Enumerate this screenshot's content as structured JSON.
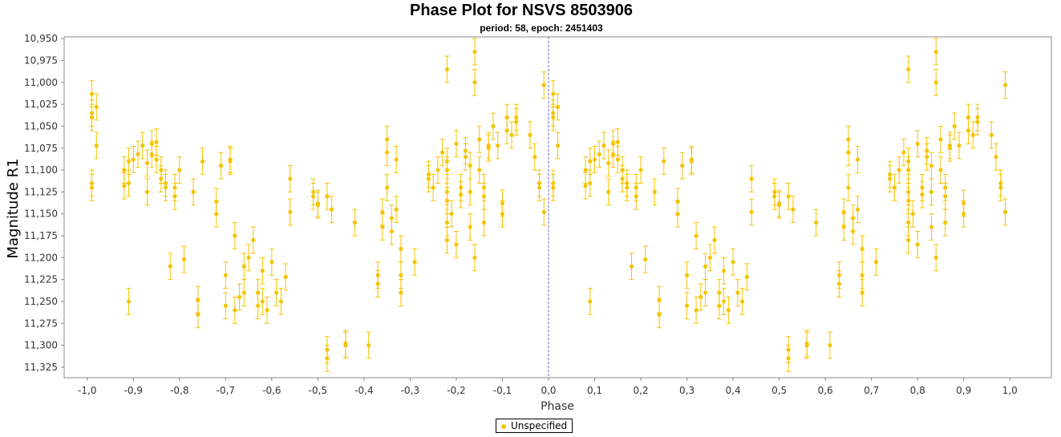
{
  "title": "Phase Plot for  NSVS 8503906",
  "subtitle": "period: 58, epoch:  2451403",
  "chart_data": {
    "type": "scatter",
    "xlabel": "Phase",
    "ylabel": "Magnitude R1",
    "xlim": [
      -1.05,
      1.09
    ],
    "ylim": [
      11.337,
      10.948
    ],
    "y_inverted": true,
    "xticks": [
      "-1,0",
      "-0,9",
      "-0,8",
      "-0,7",
      "-0,6",
      "-0,5",
      "-0,4",
      "-0,3",
      "-0,2",
      "-0,1",
      "0,0",
      "0,1",
      "0,2",
      "0,3",
      "0,4",
      "0,5",
      "0,6",
      "0,7",
      "0,8",
      "0,9",
      "1,0"
    ],
    "yticks": [
      "10,950",
      "10,975",
      "11,000",
      "11,025",
      "11,050",
      "11,075",
      "11,100",
      "11,125",
      "11,150",
      "11,175",
      "11,200",
      "11,225",
      "11,250",
      "11,275",
      "11,300",
      "11,325"
    ],
    "reference_line_x": 0.0,
    "grid": false,
    "legend_position": "bottom-center",
    "marker_color": "#f5c400",
    "series": [
      {
        "name": "Unspecified",
        "error": 0.015,
        "points": [
          [
            0.01,
            11.115
          ],
          [
            0.01,
            11.12
          ],
          [
            0.01,
            11.035
          ],
          [
            0.01,
            11.04
          ],
          [
            0.01,
            11.013
          ],
          [
            0.02,
            11.028
          ],
          [
            0.02,
            11.072
          ],
          [
            0.08,
            11.1
          ],
          [
            0.08,
            11.118
          ],
          [
            0.09,
            11.09
          ],
          [
            0.09,
            11.115
          ],
          [
            0.09,
            11.25
          ],
          [
            0.1,
            11.088
          ],
          [
            0.11,
            11.082
          ],
          [
            0.12,
            11.072
          ],
          [
            0.13,
            11.092
          ],
          [
            0.13,
            11.125
          ],
          [
            0.14,
            11.07
          ],
          [
            0.14,
            11.082
          ],
          [
            0.15,
            11.068
          ],
          [
            0.15,
            11.088
          ],
          [
            0.16,
            11.1
          ],
          [
            0.16,
            11.11
          ],
          [
            0.17,
            11.115
          ],
          [
            0.17,
            11.12
          ],
          [
            0.18,
            11.21
          ],
          [
            0.19,
            11.12
          ],
          [
            0.19,
            11.13
          ],
          [
            0.2,
            11.1
          ],
          [
            0.21,
            11.202
          ],
          [
            0.23,
            11.125
          ],
          [
            0.24,
            11.265
          ],
          [
            0.24,
            11.248
          ],
          [
            0.25,
            11.09
          ],
          [
            0.28,
            11.136
          ],
          [
            0.28,
            11.15
          ],
          [
            0.29,
            11.095
          ],
          [
            0.3,
            11.22
          ],
          [
            0.3,
            11.255
          ],
          [
            0.31,
            11.088
          ],
          [
            0.31,
            11.09
          ],
          [
            0.32,
            11.175
          ],
          [
            0.32,
            11.26
          ],
          [
            0.33,
            11.245
          ],
          [
            0.34,
            11.24
          ],
          [
            0.34,
            11.21
          ],
          [
            0.35,
            11.2
          ],
          [
            0.36,
            11.18
          ],
          [
            0.37,
            11.24
          ],
          [
            0.37,
            11.255
          ],
          [
            0.38,
            11.215
          ],
          [
            0.38,
            11.25
          ],
          [
            0.39,
            11.26
          ],
          [
            0.4,
            11.205
          ],
          [
            0.41,
            11.24
          ],
          [
            0.42,
            11.25
          ],
          [
            0.43,
            11.222
          ],
          [
            0.44,
            11.148
          ],
          [
            0.44,
            11.11
          ],
          [
            0.49,
            11.125
          ],
          [
            0.49,
            11.13
          ],
          [
            0.5,
            11.14
          ],
          [
            0.5,
            11.138
          ],
          [
            0.52,
            11.305
          ],
          [
            0.52,
            11.315
          ],
          [
            0.52,
            11.13
          ],
          [
            0.53,
            11.145
          ],
          [
            0.56,
            11.3
          ],
          [
            0.56,
            11.298
          ],
          [
            0.58,
            11.16
          ],
          [
            0.61,
            11.3
          ],
          [
            0.63,
            11.23
          ],
          [
            0.63,
            11.22
          ],
          [
            0.64,
            11.148
          ],
          [
            0.64,
            11.165
          ],
          [
            0.65,
            11.065
          ],
          [
            0.65,
            11.08
          ],
          [
            0.65,
            11.12
          ],
          [
            0.66,
            11.155
          ],
          [
            0.66,
            11.17
          ],
          [
            0.67,
            11.088
          ],
          [
            0.67,
            11.145
          ],
          [
            0.68,
            11.19
          ],
          [
            0.68,
            11.22
          ],
          [
            0.68,
            11.24
          ],
          [
            0.71,
            11.205
          ],
          [
            0.74,
            11.105
          ],
          [
            0.74,
            11.11
          ],
          [
            0.75,
            11.12
          ],
          [
            0.76,
            11.1
          ],
          [
            0.77,
            11.08
          ],
          [
            0.78,
            11.135
          ],
          [
            0.78,
            11.16
          ],
          [
            0.78,
            11.18
          ],
          [
            0.78,
            11.1
          ],
          [
            0.78,
            11.09
          ],
          [
            0.78,
            10.985
          ],
          [
            0.78,
            11.125
          ],
          [
            0.79,
            11.15
          ],
          [
            0.8,
            11.07
          ],
          [
            0.8,
            11.185
          ],
          [
            0.81,
            11.12
          ],
          [
            0.81,
            11.128
          ],
          [
            0.82,
            11.078
          ],
          [
            0.82,
            11.085
          ],
          [
            0.83,
            11.095
          ],
          [
            0.83,
            11.165
          ],
          [
            0.83,
            11.125
          ],
          [
            0.84,
            11.0
          ],
          [
            0.84,
            10.965
          ],
          [
            0.84,
            11.2
          ],
          [
            0.85,
            11.065
          ],
          [
            0.85,
            11.1
          ],
          [
            0.86,
            11.12
          ],
          [
            0.86,
            11.13
          ],
          [
            0.86,
            11.16
          ],
          [
            0.87,
            11.072
          ],
          [
            0.87,
            11.075
          ],
          [
            0.88,
            11.05
          ],
          [
            0.89,
            11.072
          ],
          [
            0.9,
            11.15
          ],
          [
            0.9,
            11.138
          ],
          [
            0.91,
            11.04
          ],
          [
            0.91,
            11.055
          ],
          [
            0.92,
            11.06
          ],
          [
            0.93,
            11.04
          ],
          [
            0.93,
            11.045
          ],
          [
            0.96,
            11.06
          ],
          [
            0.97,
            11.085
          ],
          [
            0.98,
            11.12
          ],
          [
            0.98,
            11.115
          ],
          [
            0.99,
            11.148
          ],
          [
            0.99,
            11.003
          ],
          [
            -0.99,
            11.115
          ],
          [
            -0.99,
            11.12
          ],
          [
            -0.99,
            11.035
          ],
          [
            -0.99,
            11.04
          ],
          [
            -0.99,
            11.013
          ],
          [
            -0.98,
            11.028
          ],
          [
            -0.98,
            11.072
          ],
          [
            -0.92,
            11.1
          ],
          [
            -0.92,
            11.118
          ],
          [
            -0.91,
            11.09
          ],
          [
            -0.91,
            11.115
          ],
          [
            -0.91,
            11.25
          ],
          [
            -0.9,
            11.088
          ],
          [
            -0.89,
            11.082
          ],
          [
            -0.88,
            11.072
          ],
          [
            -0.87,
            11.092
          ],
          [
            -0.87,
            11.125
          ],
          [
            -0.86,
            11.07
          ],
          [
            -0.86,
            11.082
          ],
          [
            -0.85,
            11.068
          ],
          [
            -0.85,
            11.088
          ],
          [
            -0.84,
            11.1
          ],
          [
            -0.84,
            11.11
          ],
          [
            -0.83,
            11.115
          ],
          [
            -0.83,
            11.12
          ],
          [
            -0.82,
            11.21
          ],
          [
            -0.81,
            11.12
          ],
          [
            -0.81,
            11.13
          ],
          [
            -0.8,
            11.1
          ],
          [
            -0.79,
            11.202
          ],
          [
            -0.77,
            11.125
          ],
          [
            -0.76,
            11.265
          ],
          [
            -0.76,
            11.248
          ],
          [
            -0.75,
            11.09
          ],
          [
            -0.72,
            11.136
          ],
          [
            -0.72,
            11.15
          ],
          [
            -0.71,
            11.095
          ],
          [
            -0.7,
            11.22
          ],
          [
            -0.7,
            11.255
          ],
          [
            -0.69,
            11.088
          ],
          [
            -0.69,
            11.09
          ],
          [
            -0.68,
            11.175
          ],
          [
            -0.68,
            11.26
          ],
          [
            -0.67,
            11.245
          ],
          [
            -0.66,
            11.24
          ],
          [
            -0.66,
            11.21
          ],
          [
            -0.65,
            11.2
          ],
          [
            -0.64,
            11.18
          ],
          [
            -0.63,
            11.24
          ],
          [
            -0.63,
            11.255
          ],
          [
            -0.62,
            11.215
          ],
          [
            -0.62,
            11.25
          ],
          [
            -0.61,
            11.26
          ],
          [
            -0.6,
            11.205
          ],
          [
            -0.59,
            11.24
          ],
          [
            -0.58,
            11.25
          ],
          [
            -0.57,
            11.222
          ],
          [
            -0.56,
            11.148
          ],
          [
            -0.56,
            11.11
          ],
          [
            -0.51,
            11.125
          ],
          [
            -0.51,
            11.13
          ],
          [
            -0.5,
            11.14
          ],
          [
            -0.5,
            11.138
          ],
          [
            -0.48,
            11.305
          ],
          [
            -0.48,
            11.315
          ],
          [
            -0.48,
            11.13
          ],
          [
            -0.47,
            11.145
          ],
          [
            -0.44,
            11.3
          ],
          [
            -0.44,
            11.298
          ],
          [
            -0.42,
            11.16
          ],
          [
            -0.39,
            11.3
          ],
          [
            -0.37,
            11.23
          ],
          [
            -0.37,
            11.22
          ],
          [
            -0.36,
            11.148
          ],
          [
            -0.36,
            11.165
          ],
          [
            -0.35,
            11.065
          ],
          [
            -0.35,
            11.08
          ],
          [
            -0.35,
            11.12
          ],
          [
            -0.34,
            11.155
          ],
          [
            -0.34,
            11.17
          ],
          [
            -0.33,
            11.088
          ],
          [
            -0.33,
            11.145
          ],
          [
            -0.32,
            11.19
          ],
          [
            -0.32,
            11.22
          ],
          [
            -0.32,
            11.24
          ],
          [
            -0.29,
            11.205
          ],
          [
            -0.26,
            11.105
          ],
          [
            -0.26,
            11.11
          ],
          [
            -0.25,
            11.12
          ],
          [
            -0.24,
            11.1
          ],
          [
            -0.23,
            11.08
          ],
          [
            -0.22,
            11.135
          ],
          [
            -0.22,
            11.16
          ],
          [
            -0.22,
            11.18
          ],
          [
            -0.22,
            11.1
          ],
          [
            -0.22,
            11.09
          ],
          [
            -0.22,
            10.985
          ],
          [
            -0.22,
            11.125
          ],
          [
            -0.21,
            11.15
          ],
          [
            -0.2,
            11.07
          ],
          [
            -0.2,
            11.185
          ],
          [
            -0.19,
            11.12
          ],
          [
            -0.19,
            11.128
          ],
          [
            -0.18,
            11.078
          ],
          [
            -0.18,
            11.085
          ],
          [
            -0.17,
            11.095
          ],
          [
            -0.17,
            11.165
          ],
          [
            -0.17,
            11.125
          ],
          [
            -0.16,
            11.0
          ],
          [
            -0.16,
            10.965
          ],
          [
            -0.16,
            11.2
          ],
          [
            -0.15,
            11.065
          ],
          [
            -0.15,
            11.1
          ],
          [
            -0.14,
            11.12
          ],
          [
            -0.14,
            11.13
          ],
          [
            -0.14,
            11.16
          ],
          [
            -0.13,
            11.072
          ],
          [
            -0.13,
            11.075
          ],
          [
            -0.12,
            11.05
          ],
          [
            -0.11,
            11.072
          ],
          [
            -0.1,
            11.15
          ],
          [
            -0.1,
            11.138
          ],
          [
            -0.09,
            11.04
          ],
          [
            -0.09,
            11.055
          ],
          [
            -0.08,
            11.06
          ],
          [
            -0.07,
            11.04
          ],
          [
            -0.07,
            11.045
          ],
          [
            -0.04,
            11.06
          ],
          [
            -0.03,
            11.085
          ],
          [
            -0.02,
            11.12
          ],
          [
            -0.02,
            11.115
          ],
          [
            -0.01,
            11.148
          ],
          [
            -0.01,
            11.003
          ]
        ]
      }
    ]
  }
}
